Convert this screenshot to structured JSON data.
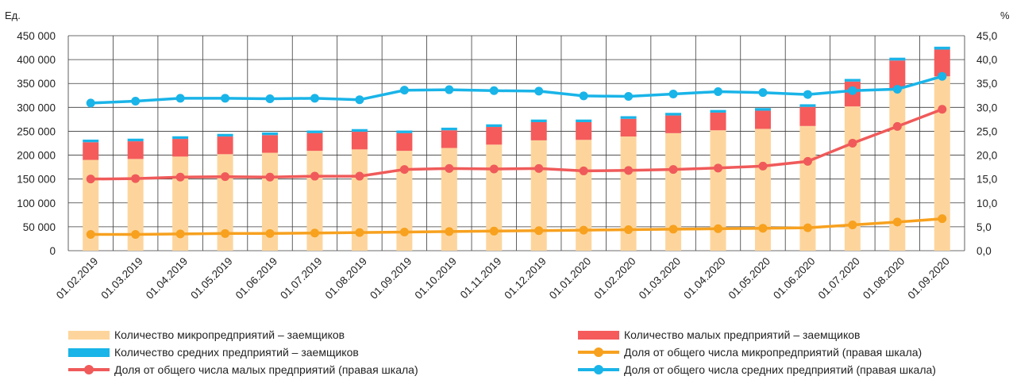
{
  "chart_data": {
    "type": "bar",
    "stacked": true,
    "left_axis_unit": "Ед.",
    "right_axis_unit": "%",
    "ylim_left": [
      0,
      450000
    ],
    "ylim_right": [
      0,
      45
    ],
    "left_ticks": [
      "0",
      "50 000",
      "100 000",
      "150 000",
      "200 000",
      "250 000",
      "300 000",
      "350 000",
      "400 000",
      "450 000"
    ],
    "right_ticks": [
      "0,0",
      "5,0",
      "10,0",
      "15,0",
      "20,0",
      "25,0",
      "30,0",
      "35,0",
      "40,0",
      "45,0"
    ],
    "grid": true,
    "legend_position": "bottom",
    "categories": [
      "01.02.2019",
      "01.03.2019",
      "01.04.2019",
      "01.05.2019",
      "01.06.2019",
      "01.07.2019",
      "01.08.2019",
      "01.09.2019",
      "01.10.2019",
      "01.11.2019",
      "01.12.2019",
      "01.01.2020",
      "01.02.2020",
      "01.03.2020",
      "01.04.2020",
      "01.05.2020",
      "01.06.2020",
      "01.07.2020",
      "01.08.2020",
      "01.09.2020"
    ],
    "series": [
      {
        "name": "Количество микропредприятий – заемщиков",
        "kind": "bar",
        "axis": "left",
        "color": "#FDD59C",
        "values": [
          190000,
          192000,
          197000,
          202000,
          205000,
          209000,
          212000,
          209000,
          215000,
          222000,
          231000,
          232000,
          239000,
          246000,
          252000,
          255000,
          261000,
          302000,
          340000,
          365000
        ]
      },
      {
        "name": "Количество малых предприятий – заемщиков",
        "kind": "bar",
        "axis": "left",
        "color": "#F55B5B",
        "values": [
          37000,
          37000,
          37000,
          37000,
          37000,
          37000,
          37000,
          37000,
          37000,
          37000,
          38000,
          37000,
          37000,
          37000,
          37000,
          38000,
          40000,
          52000,
          58000,
          56000
        ]
      },
      {
        "name": "Количество средних предприятий – заемщиков",
        "kind": "bar",
        "axis": "left",
        "color": "#19B4E8",
        "values": [
          5500,
          5500,
          5500,
          5500,
          5500,
          5500,
          5500,
          5500,
          5500,
          5500,
          5500,
          5500,
          5500,
          5500,
          5500,
          5500,
          5500,
          5500,
          6000,
          6000
        ]
      },
      {
        "name": "Доля от общего числа микропредприятий (правая шкала)",
        "kind": "line",
        "axis": "right",
        "color": "#F7A11F",
        "values": [
          3.4,
          3.4,
          3.5,
          3.6,
          3.6,
          3.7,
          3.8,
          3.9,
          4.0,
          4.1,
          4.2,
          4.3,
          4.4,
          4.5,
          4.6,
          4.7,
          4.8,
          5.4,
          6.0,
          6.7
        ]
      },
      {
        "name": "Доля от общего числа малых предприятий (правая шкала)",
        "kind": "line",
        "axis": "right",
        "color": "#F05A5A",
        "values": [
          15.0,
          15.1,
          15.4,
          15.5,
          15.4,
          15.6,
          15.6,
          17.0,
          17.2,
          17.1,
          17.2,
          16.7,
          16.8,
          17.0,
          17.3,
          17.7,
          18.7,
          22.5,
          26.0,
          29.6
        ]
      },
      {
        "name": "Доля от общего числа средних предприятий (правая шкала)",
        "kind": "line",
        "axis": "right",
        "color": "#19B4E8",
        "values": [
          30.9,
          31.3,
          31.9,
          31.9,
          31.8,
          31.9,
          31.6,
          33.6,
          33.7,
          33.5,
          33.4,
          32.4,
          32.3,
          32.8,
          33.3,
          33.1,
          32.7,
          33.5,
          33.8,
          36.5
        ]
      }
    ]
  },
  "legend": [
    {
      "label": "Количество микропредприятий – заемщиков",
      "color": "#FDD59C",
      "kind": "bar"
    },
    {
      "label": "Количество малых предприятий – заемщиков",
      "color": "#F55B5B",
      "kind": "bar"
    },
    {
      "label": "Количество средних предприятий – заемщиков",
      "color": "#19B4E8",
      "kind": "bar"
    },
    {
      "label": "Доля от общего числа микропредприятий (правая шкала)",
      "color": "#F7A11F",
      "kind": "line"
    },
    {
      "label": "Доля от общего числа малых предприятий (правая шкала)",
      "color": "#F05A5A",
      "kind": "line"
    },
    {
      "label": "Доля от общего числа средних предприятий (правая шкала)",
      "color": "#19B4E8",
      "kind": "line"
    }
  ]
}
